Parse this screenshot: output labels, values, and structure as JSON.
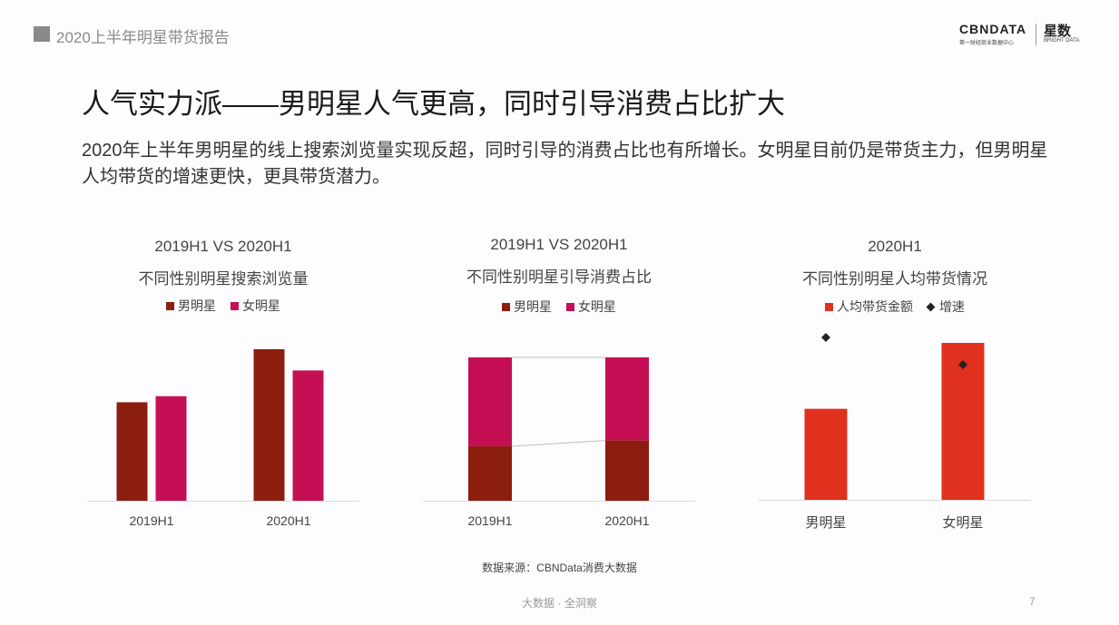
{
  "header": {
    "report_title": "2020上半年明星带货报告",
    "logo_main": "CBNDATA",
    "logo_sub": "第一财经商业数据中心",
    "logo_cn": "星数",
    "logo_en": "BRIGHT DATA"
  },
  "headline": "人气实力派——男明星人气更高，同时引导消费占比扩大",
  "description": "2020年上半年男明星的线上搜索浏览量实现反超，同时引导的消费占比也有所增长。女明星目前仍是带货主力，但男明星人均带货的增速更快，更具带货潜力。",
  "colors": {
    "male": "#8b1e0e",
    "female": "#c50f55",
    "amount": "#e0301e",
    "growth": "#222222",
    "axis": "#d9d9d9",
    "connector": "#bfbfbf"
  },
  "chart_data": [
    {
      "type": "bar",
      "title_line1": "2019H1 VS 2020H1",
      "title_line2": "不同性别明星搜索浏览量",
      "categories": [
        "2019H1",
        "2020H1"
      ],
      "series": [
        {
          "name": "男明星",
          "values": [
            0.65,
            1.0
          ]
        },
        {
          "name": "女明星",
          "values": [
            0.69,
            0.86
          ]
        }
      ],
      "ylim": [
        0,
        1
      ],
      "grid": false,
      "legend": "top"
    },
    {
      "type": "bar",
      "stacked": true,
      "title_line1": "2019H1 VS 2020H1",
      "title_line2": "不同性别明星引导消费占比",
      "categories": [
        "2019H1",
        "2020H1"
      ],
      "series": [
        {
          "name": "男明星",
          "values": [
            0.38,
            0.42
          ]
        },
        {
          "name": "女明星",
          "values": [
            0.62,
            0.58
          ]
        }
      ],
      "ylim": [
        0,
        1
      ],
      "grid": false,
      "legend": "top"
    },
    {
      "type": "bar",
      "title_line1": "2020H1",
      "title_line2": "不同性别明星人均带货情况",
      "categories": [
        "男明星",
        "女明星"
      ],
      "series": [
        {
          "name": "人均带货金额",
          "values": [
            0.58,
            1.0
          ]
        },
        {
          "name": "增速",
          "values": [
            1.0,
            0.82
          ],
          "marker": "diamond"
        }
      ],
      "ylim": [
        0,
        1
      ],
      "grid": false,
      "legend": "top"
    }
  ],
  "source": "数据来源：CBNData消费大数据",
  "footer": "大数据 · 全洞察",
  "page_number": "7"
}
